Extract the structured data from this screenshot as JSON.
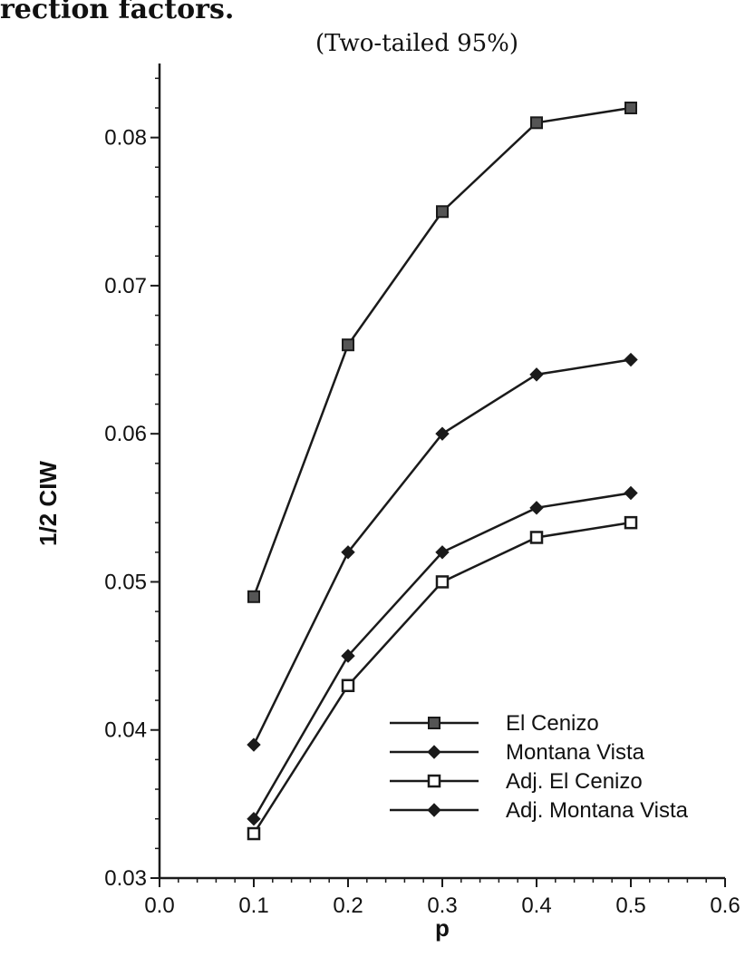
{
  "header": {
    "cropped_text": "rection factors."
  },
  "chart_data": {
    "type": "line",
    "title": "",
    "subtitle": "(Two-tailed 95%)",
    "xlabel": "p",
    "ylabel": "1/2 CIW",
    "xlim": [
      0.0,
      0.6
    ],
    "ylim": [
      0.03,
      0.085
    ],
    "x_ticks": [
      "0.0",
      "0.1",
      "0.2",
      "0.3",
      "0.4",
      "0.5",
      "0.6"
    ],
    "y_ticks": [
      "0.03",
      "0.04",
      "0.05",
      "0.06",
      "0.07",
      "0.08"
    ],
    "grid": false,
    "legend_position": "bottom-right",
    "x": [
      0.1,
      0.2,
      0.3,
      0.4,
      0.5
    ],
    "series": [
      {
        "name": "El Cenizo",
        "marker": "filled-square",
        "values": [
          0.049,
          0.066,
          0.075,
          0.081,
          0.082
        ]
      },
      {
        "name": "Montana Vista",
        "marker": "filled-diamond",
        "values": [
          0.039,
          0.052,
          0.06,
          0.064,
          0.065
        ]
      },
      {
        "name": "Adj. El Cenizo",
        "marker": "open-square",
        "values": [
          0.033,
          0.043,
          0.05,
          0.053,
          0.054
        ]
      },
      {
        "name": "Adj. Montana Vista",
        "marker": "filled-diamond",
        "values": [
          0.034,
          0.045,
          0.052,
          0.055,
          0.056
        ]
      }
    ],
    "colors": {
      "line": "#1a1a1a",
      "marker": "#1a1a1a",
      "open_fill": "#ffffff"
    }
  }
}
